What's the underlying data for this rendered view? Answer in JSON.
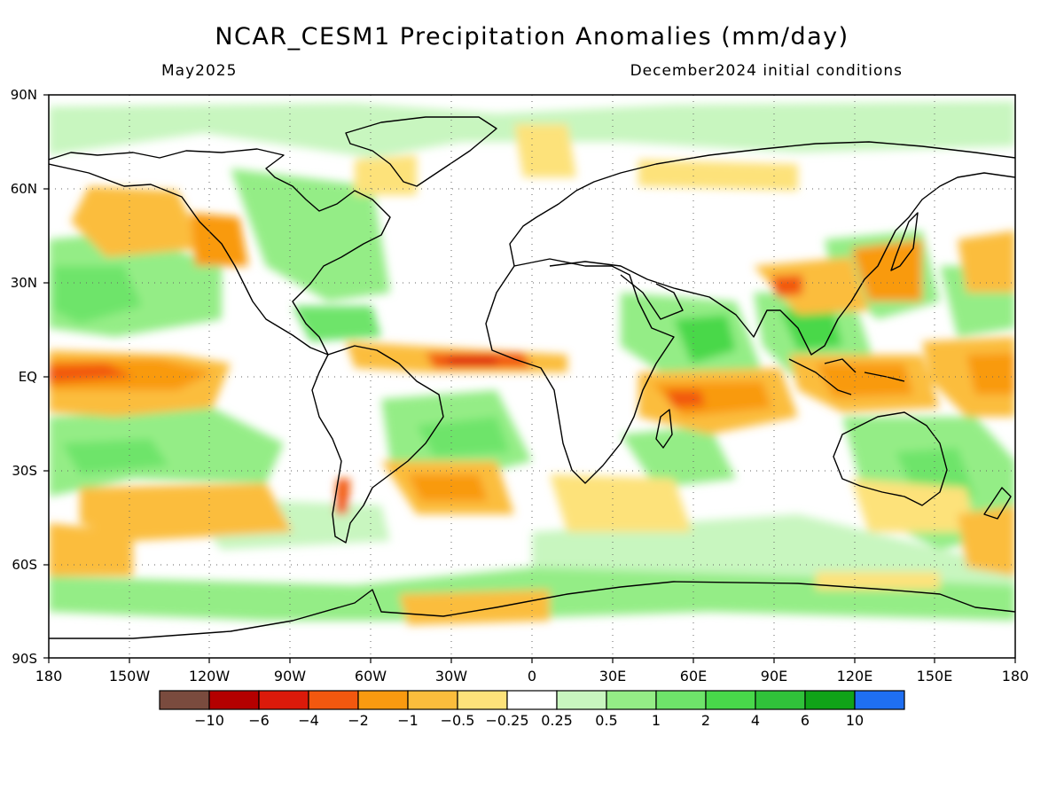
{
  "header": {
    "title": "NCAR_CESM1 Precipitation Anomalies (mm/day)",
    "valid_month": "May2025",
    "init_label": "December2024 initial conditions"
  },
  "map": {
    "projection": "equirectangular",
    "lon_range": [
      -180,
      180
    ],
    "lat_range": [
      -90,
      90
    ],
    "grid_lines": true,
    "lat_ticks": [
      "90N",
      "60N",
      "30N",
      "EQ",
      "30S",
      "60S",
      "90S"
    ],
    "lon_ticks": [
      "180",
      "150W",
      "120W",
      "90W",
      "60W",
      "30W",
      "0",
      "30E",
      "60E",
      "90E",
      "120E",
      "150E",
      "180"
    ]
  },
  "colorbar": {
    "colors": [
      "#7a4b3e",
      "#b40000",
      "#dc1a0a",
      "#f2580f",
      "#f99a10",
      "#fbbd3c",
      "#fde27a",
      "#ffffff",
      "#c8f6bf",
      "#94ed86",
      "#6ee46a",
      "#48d84a",
      "#30c23a",
      "#10a318",
      "#1f6ff2"
    ],
    "labels": [
      "−10",
      "−6",
      "−4",
      "−2",
      "−1",
      "−0.5",
      "−0.25",
      "0.25",
      "0.5",
      "1",
      "2",
      "4",
      "6",
      "10"
    ]
  }
}
